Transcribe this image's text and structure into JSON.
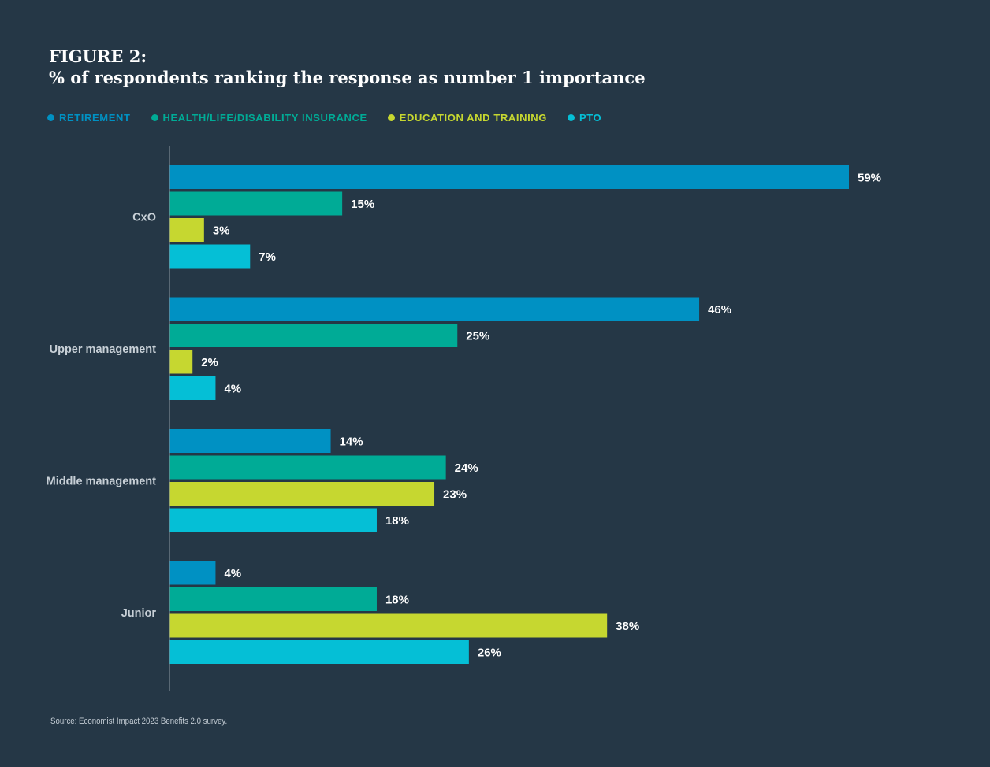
{
  "header": {
    "figure_label": "FIGURE 2:",
    "subtitle": "% of respondents ranking the response as number 1 importance"
  },
  "footer": {
    "source": "Source: Economist Impact 2023 Benefits 2.0 survey."
  },
  "colors": {
    "background": "#253746",
    "retirement": "#0091c3",
    "insurance": "#00ab96",
    "education": "#c6d730",
    "pto": "#05bfd6",
    "axis": "#7c8893",
    "category_label": "#c8d0d7",
    "value_label": "#ffffff"
  },
  "chart_data": {
    "type": "bar",
    "orientation": "horizontal",
    "title": "% of respondents ranking the response as number 1 importance",
    "xlabel": "",
    "ylabel": "",
    "xlim": [
      0,
      59
    ],
    "grid": false,
    "legend_position": "top-left",
    "value_suffix": "%",
    "categories": [
      "CxO",
      "Upper management",
      "Middle management",
      "Junior"
    ],
    "series": [
      {
        "name": "RETIREMENT",
        "color": "#0091c3",
        "values": [
          59,
          46,
          14,
          4
        ]
      },
      {
        "name": "HEALTH/LIFE/DISABILITY INSURANCE",
        "color": "#00ab96",
        "values": [
          15,
          25,
          24,
          18
        ]
      },
      {
        "name": "EDUCATION AND TRAINING",
        "color": "#c6d730",
        "values": [
          3,
          2,
          23,
          38
        ]
      },
      {
        "name": "PTO",
        "color": "#05bfd6",
        "values": [
          7,
          4,
          18,
          26
        ]
      }
    ]
  }
}
